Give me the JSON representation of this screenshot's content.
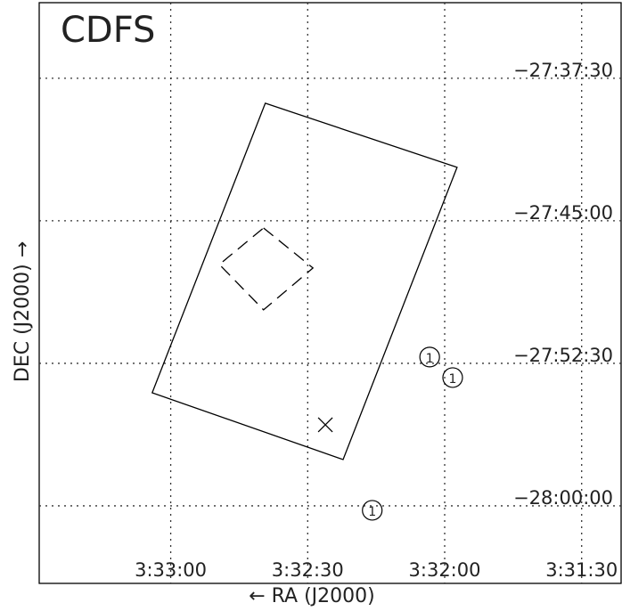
{
  "chart_data": {
    "type": "sky",
    "title": "CDFS",
    "x_label": "← RA (J2000)",
    "y_label": "DEC (J2000) →",
    "xlim": [
      53.37,
      52.839
    ],
    "ylim": [
      -28.068,
      -27.5587
    ],
    "xticks": [
      {
        "value": 53.25,
        "label": "3:33:00"
      },
      {
        "value": 53.125,
        "label": "3:32:30"
      },
      {
        "value": 53.0,
        "label": "3:32:00"
      },
      {
        "value": 52.875,
        "label": "3:31:30"
      }
    ],
    "yticks": [
      {
        "value": -27.625,
        "label": "−27:37:30"
      },
      {
        "value": -27.75,
        "label": "−27:45:00"
      },
      {
        "value": -27.875,
        "label": "−27:52:30"
      },
      {
        "value": -28.0,
        "label": "−28:00:00"
      }
    ],
    "grid": true,
    "footprints": [
      {
        "style": "solid",
        "ra": [
          53.1637,
          52.9887,
          53.0927,
          53.2669
        ],
        "dec": [
          -27.6469,
          -27.7031,
          -27.9594,
          -27.9008
        ]
      },
      {
        "style": "dashed",
        "ra": [
          53.1653,
          53.1202,
          53.1653,
          53.2056
        ],
        "dec": [
          -27.7563,
          -27.7914,
          -27.8281,
          -27.7883
        ]
      }
    ],
    "cross": {
      "ra": 53.1089,
      "dec": -27.9289
    },
    "sources": {
      "ra": [
        53.0137,
        52.9927,
        53.0661
      ],
      "dec": [
        -27.8695,
        -27.8875,
        -28.0039
      ],
      "labels": [
        "1",
        "1",
        "1"
      ]
    }
  }
}
